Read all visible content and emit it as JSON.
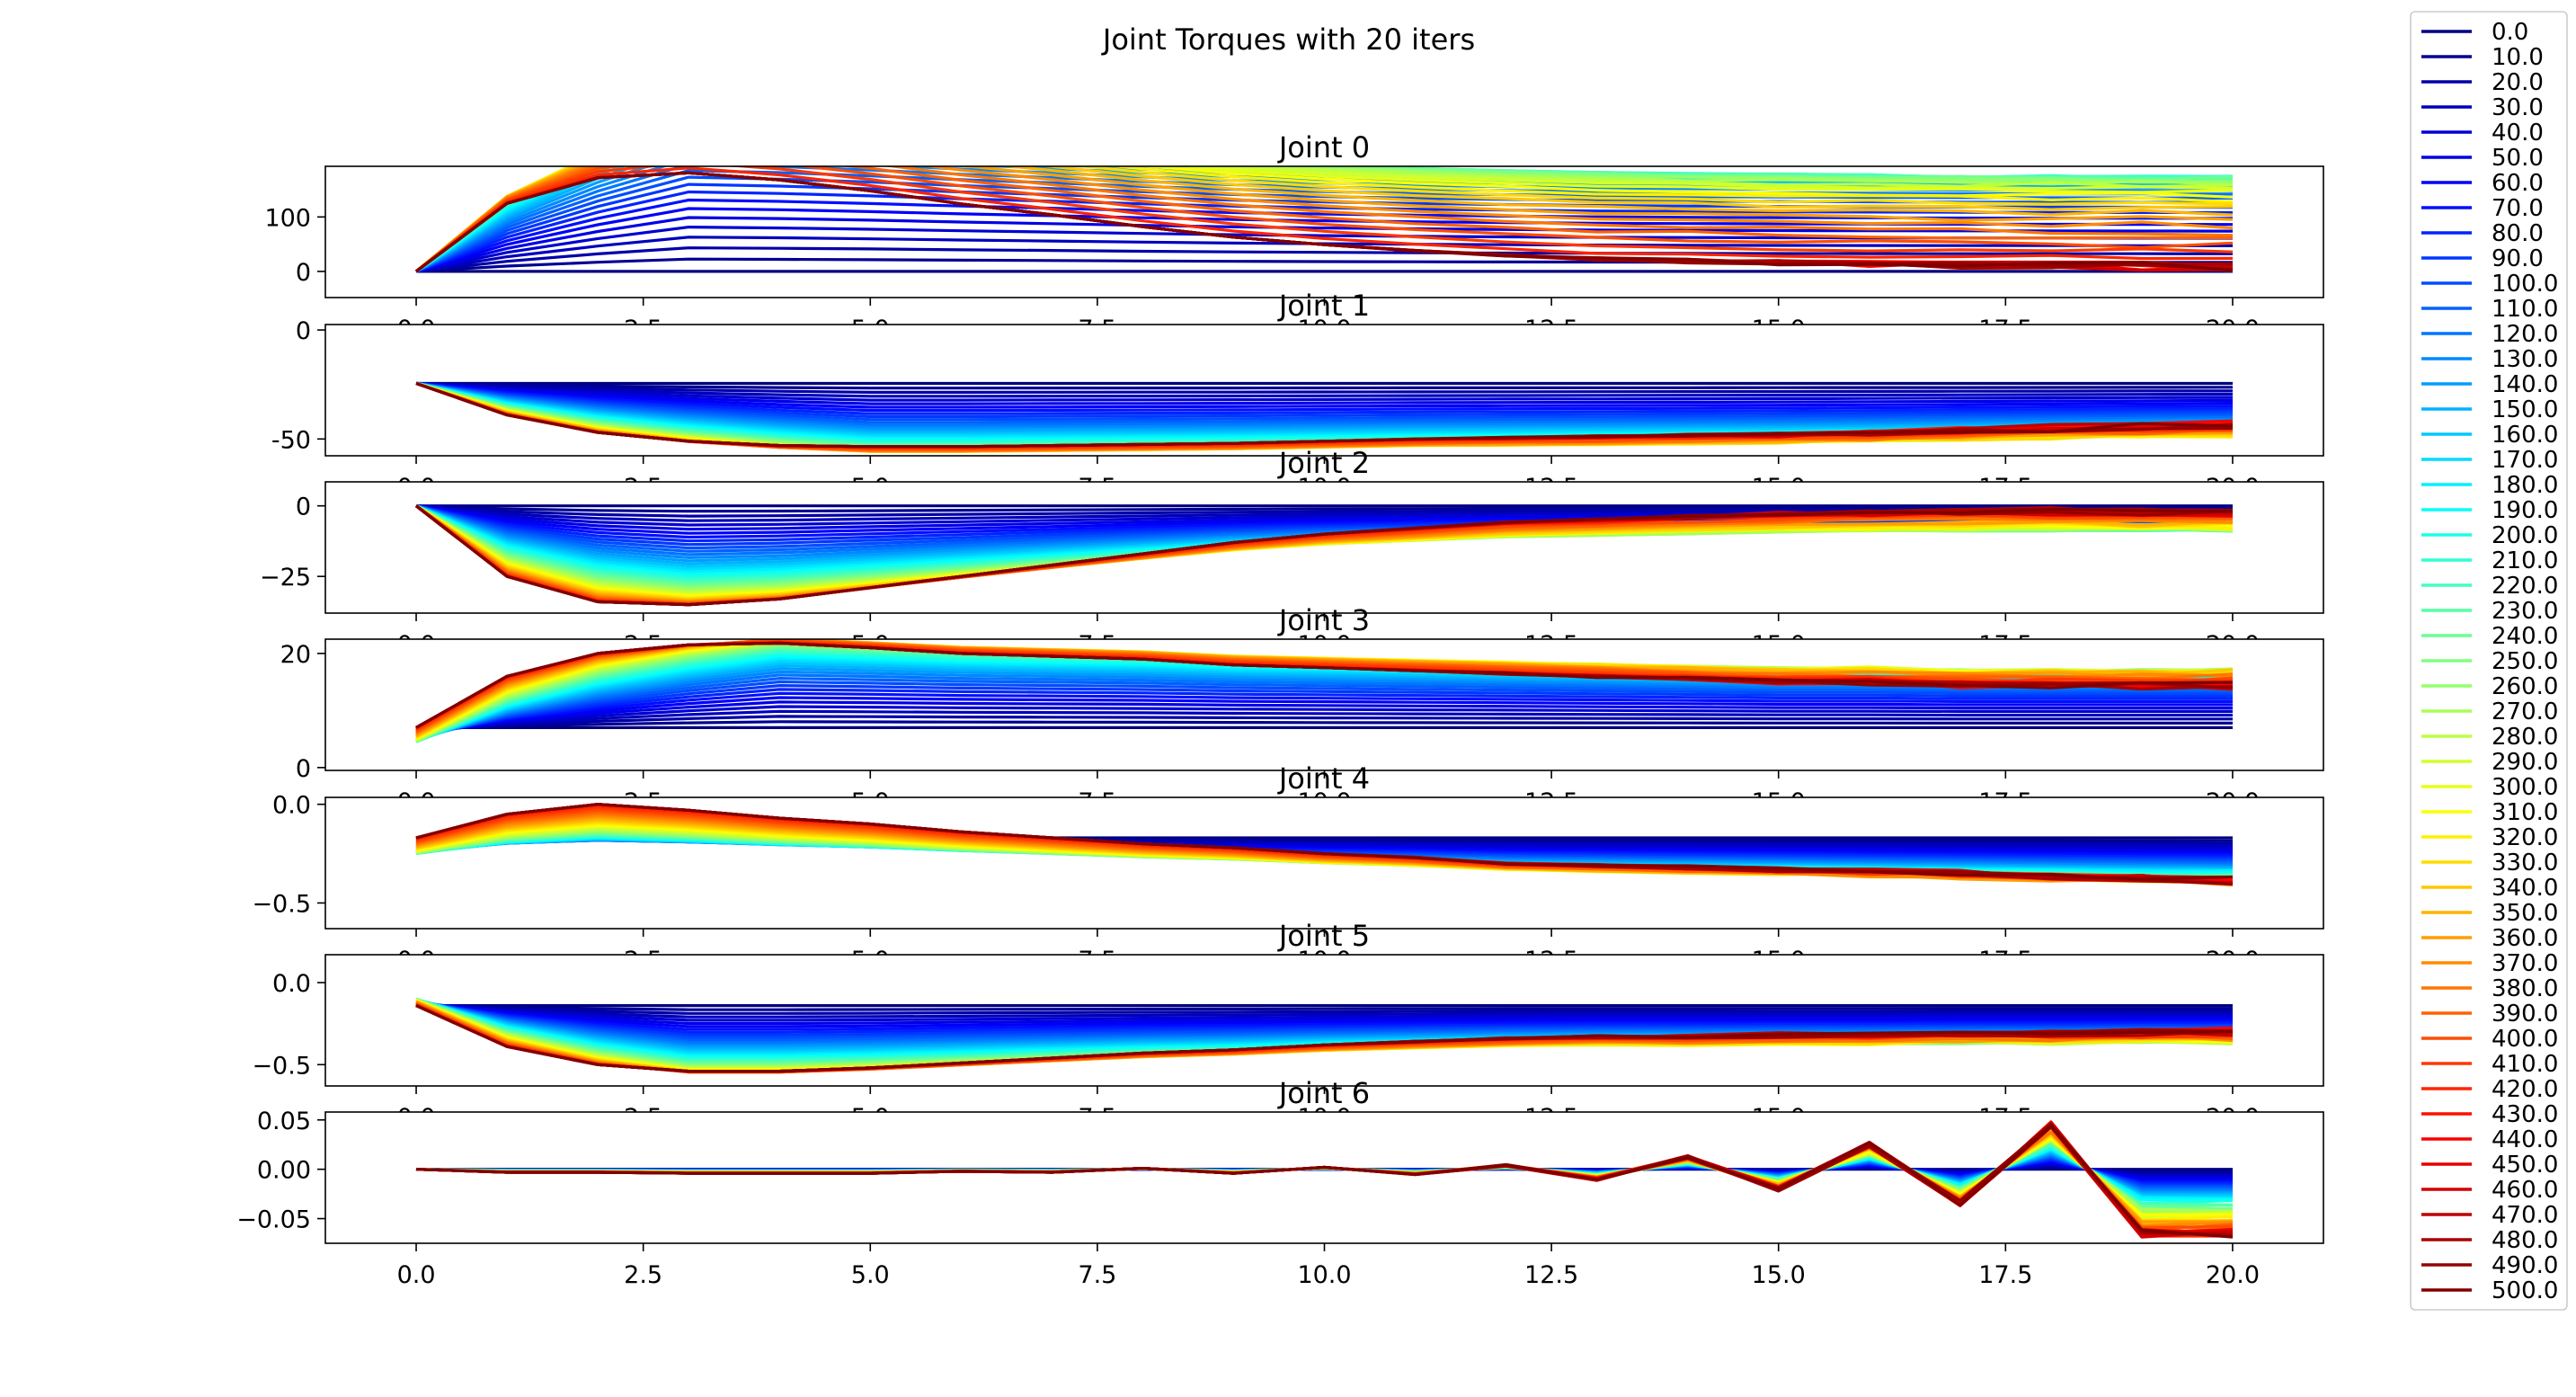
{
  "figure": {
    "suptitle": "Joint Torques with 20 iters"
  },
  "chart_data": {
    "type": "line",
    "title": "Joint Torques with 20 iters",
    "x_range": [
      0,
      20
    ],
    "x_ticks": [
      0.0,
      2.5,
      5.0,
      7.5,
      10.0,
      12.5,
      15.0,
      17.5,
      20.0
    ],
    "x_tick_labels": [
      "0.0",
      "2.5",
      "5.0",
      "7.5",
      "10.0",
      "12.5",
      "15.0",
      "17.5",
      "20.0"
    ],
    "x_ticks_visible_on": "bottom subplot only (upper subplots' tick labels are overlapped by the next subplot)",
    "grid": false,
    "legend_placement": "outside right",
    "colormap": "jet (dark blue for 0.0 to dark red for 500.0)",
    "legend_entries": [
      "0.0",
      "10.0",
      "20.0",
      "30.0",
      "40.0",
      "50.0",
      "60.0",
      "70.0",
      "80.0",
      "90.0",
      "100.0",
      "110.0",
      "120.0",
      "130.0",
      "140.0",
      "150.0",
      "160.0",
      "170.0",
      "180.0",
      "190.0",
      "200.0",
      "210.0",
      "220.0",
      "230.0",
      "240.0",
      "250.0",
      "260.0",
      "270.0",
      "280.0",
      "290.0",
      "300.0",
      "310.0",
      "320.0",
      "330.0",
      "340.0",
      "350.0",
      "360.0",
      "370.0",
      "380.0",
      "390.0",
      "400.0",
      "410.0",
      "420.0",
      "430.0",
      "440.0",
      "450.0",
      "460.0",
      "470.0",
      "480.0",
      "490.0",
      "500.0"
    ],
    "subplots": [
      {
        "title": "Joint 0",
        "ylim": [
          -48,
          193
        ],
        "y_ticks": [
          0,
          100
        ],
        "y_tick_labels": [
          "0",
          "100"
        ],
        "start": 0,
        "start_step": 0,
        "plateau_step": 17,
        "peak_index": 3,
        "final_profile": [
          0,
          125,
          172,
          181,
          168,
          148,
          124,
          104,
          82,
          63,
          49,
          38,
          30,
          23,
          19,
          16,
          14,
          12,
          11,
          10,
          9
        ]
      },
      {
        "title": "Joint 1",
        "ylim": [
          -57.7,
          2.5
        ],
        "y_ticks": [
          0,
          -50
        ],
        "y_tick_labels": [
          "0",
          "-50"
        ],
        "start": -24.5,
        "start_step": 0,
        "plateau_step": -1.2,
        "peak_index": 5,
        "final_profile": [
          -24.5,
          -39,
          -47,
          -51,
          -53,
          -53.5,
          -53.5,
          -53,
          -52.5,
          -52,
          -51,
          -50,
          -49.5,
          -49,
          -48.5,
          -48,
          -47,
          -46,
          -45,
          -44,
          -43
        ]
      },
      {
        "title": "Joint 2",
        "ylim": [
          -38,
          8.5
        ],
        "y_ticks": [
          0,
          -25
        ],
        "y_tick_labels": [
          "0",
          "−25"
        ],
        "start": 0,
        "start_step": 0,
        "plateau_step": -0.75,
        "peak_index": 3,
        "final_profile": [
          0,
          -25,
          -34,
          -35,
          -33,
          -29,
          -25,
          -21,
          -17,
          -13,
          -10,
          -8,
          -6,
          -5,
          -4,
          -3,
          -2.5,
          -2,
          -2,
          -2,
          -2
        ]
      },
      {
        "title": "Joint 3",
        "ylim": [
          -0.5,
          22.5
        ],
        "y_ticks": [
          20,
          0
        ],
        "y_tick_labels": [
          "20",
          "0"
        ],
        "start": 7,
        "start_step": -0.25,
        "plateau_step": 0.55,
        "peak_index": 4,
        "final_profile": [
          7,
          16,
          20,
          21.5,
          21.8,
          21,
          20,
          19.5,
          19,
          18,
          17.5,
          17,
          16.5,
          16,
          15.5,
          15,
          15,
          14.5,
          14.5,
          14.5,
          14.5
        ]
      },
      {
        "title": "Joint 4",
        "ylim": [
          -0.63,
          0.035
        ],
        "y_ticks": [
          0.0,
          -0.5
        ],
        "y_tick_labels": [
          "0.0",
          "−0.5"
        ],
        "start": -0.17,
        "start_step": -0.008,
        "plateau_step": -0.008,
        "peak_index": 2,
        "final_profile": [
          -0.17,
          -0.05,
          0,
          -0.03,
          -0.07,
          -0.1,
          -0.14,
          -0.17,
          -0.2,
          -0.22,
          -0.25,
          -0.27,
          -0.3,
          -0.31,
          -0.32,
          -0.33,
          -0.34,
          -0.35,
          -0.36,
          -0.37,
          -0.38
        ]
      },
      {
        "title": "Joint 5",
        "ylim": [
          -0.63,
          0.17
        ],
        "y_ticks": [
          0.0,
          -0.5
        ],
        "y_tick_labels": [
          "0.0",
          "−0.5"
        ],
        "start": -0.14,
        "start_step": 0.004,
        "plateau_step": -0.012,
        "peak_index": 3,
        "final_profile": [
          -0.14,
          -0.39,
          -0.5,
          -0.54,
          -0.54,
          -0.52,
          -0.49,
          -0.46,
          -0.43,
          -0.41,
          -0.38,
          -0.36,
          -0.34,
          -0.33,
          -0.33,
          -0.32,
          -0.32,
          -0.31,
          -0.31,
          -0.3,
          -0.3
        ]
      },
      {
        "title": "Joint 6",
        "ylim": [
          -0.075,
          0.058
        ],
        "y_ticks": [
          0.05,
          0.0,
          -0.05
        ],
        "y_tick_labels": [
          "0.05",
          "0.00",
          "−0.05"
        ],
        "start": 0,
        "start_step": 0,
        "plateau_step": 0,
        "peak_index": 1,
        "final_profile": [
          0,
          -0.003,
          -0.003,
          -0.004,
          -0.004,
          -0.004,
          -0.002,
          -0.003,
          0.001,
          -0.004,
          0.002,
          -0.005,
          0.004,
          -0.01,
          0.012,
          -0.02,
          0.025,
          -0.035,
          0.045,
          -0.065,
          -0.065
        ]
      }
    ]
  }
}
